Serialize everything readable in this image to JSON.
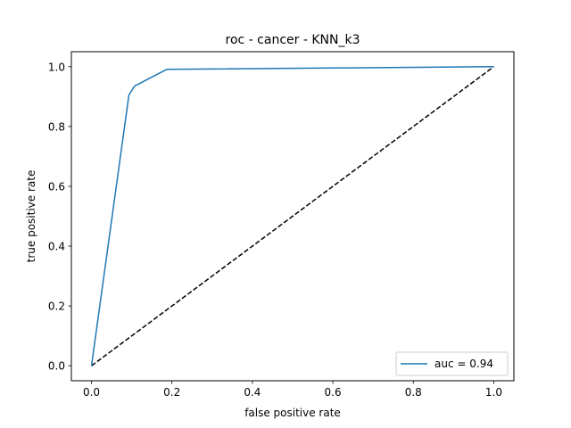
{
  "chart_data": {
    "type": "line",
    "title": "roc - cancer - KNN_k3",
    "xlabel": "false positive rate",
    "ylabel": "true positive rate",
    "xlim": [
      -0.05,
      1.05
    ],
    "ylim": [
      -0.05,
      1.05
    ],
    "xticks": [
      0.0,
      0.2,
      0.4,
      0.6,
      0.8,
      1.0
    ],
    "xtick_labels": [
      "0.0",
      "0.2",
      "0.4",
      "0.6",
      "0.8",
      "1.0"
    ],
    "yticks": [
      0.0,
      0.2,
      0.4,
      0.6,
      0.8,
      1.0
    ],
    "ytick_labels": [
      "0.0",
      "0.2",
      "0.4",
      "0.6",
      "0.8",
      "1.0"
    ],
    "grid": false,
    "legend_position": "lower-right",
    "series": [
      {
        "name": "auc = 0.94",
        "color": "#1f77b4",
        "style": "solid",
        "x": [
          0.0,
          0.093,
          0.107,
          0.187,
          1.0
        ],
        "y": [
          0.0,
          0.905,
          0.935,
          0.991,
          1.0
        ]
      },
      {
        "color": "#000000",
        "style": "dashed",
        "x": [
          0.0,
          1.0
        ],
        "y": [
          0.0,
          1.0
        ]
      }
    ]
  }
}
